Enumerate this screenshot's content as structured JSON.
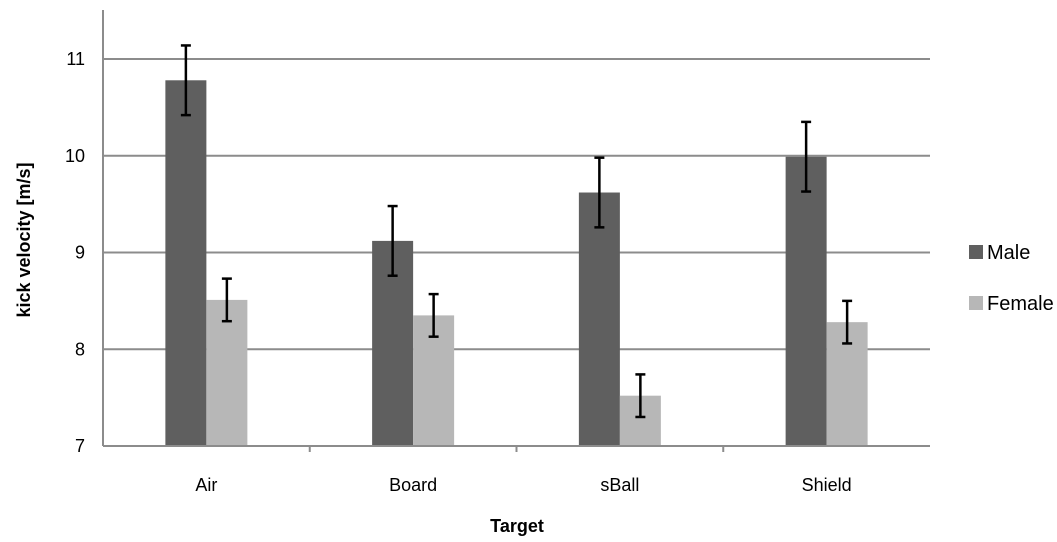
{
  "chart_data": {
    "type": "bar",
    "title": "",
    "xlabel": "Target",
    "ylabel": "kick velocity [m/s]",
    "categories": [
      "Air",
      "Board",
      "sBall",
      "Shield"
    ],
    "ylim": [
      7,
      11
    ],
    "yticks": [
      7,
      8,
      9,
      10,
      11
    ],
    "grid": true,
    "legend_position": "right",
    "series": [
      {
        "name": "Male",
        "color": "#5f5f5f",
        "values": [
          10.78,
          9.12,
          9.62,
          9.99
        ],
        "error": [
          0.36,
          0.36,
          0.36,
          0.36
        ]
      },
      {
        "name": "Female",
        "color": "#b7b7b7",
        "values": [
          8.51,
          8.35,
          7.52,
          8.28
        ],
        "error": [
          0.22,
          0.22,
          0.22,
          0.22
        ]
      }
    ]
  }
}
